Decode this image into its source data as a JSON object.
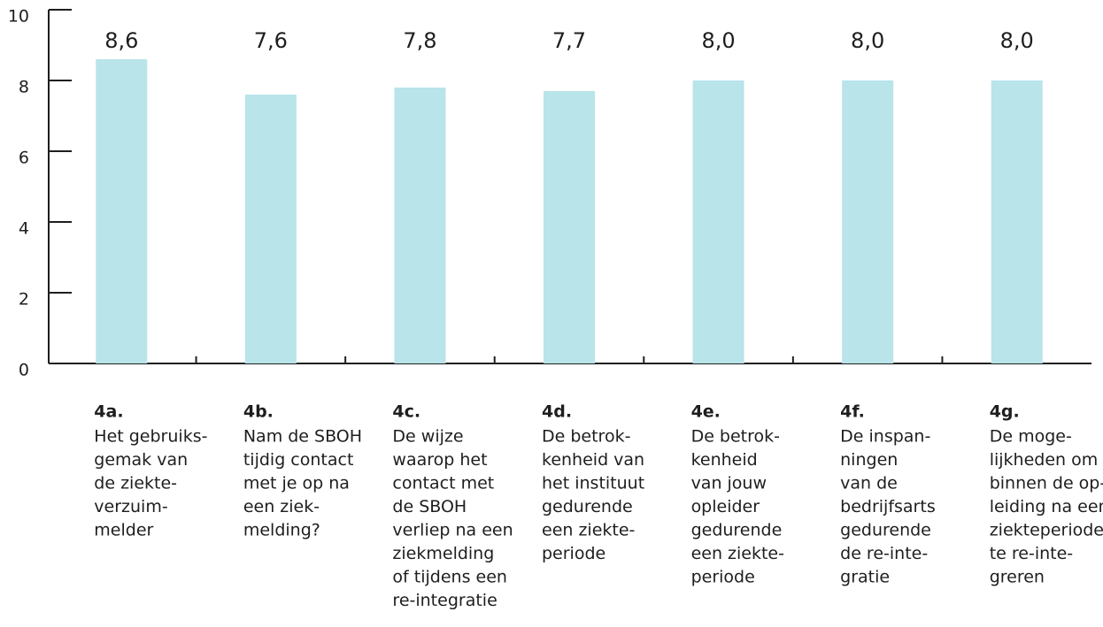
{
  "chart_data": {
    "type": "bar",
    "categories": [
      "4a.",
      "4b.",
      "4c.",
      "4d.",
      "4e.",
      "4f.",
      "4g."
    ],
    "descriptions": [
      [
        "Het gebruiks-",
        "gemak van",
        "de ziekte-",
        "verzuim-",
        "melder"
      ],
      [
        "Nam de SBOH",
        "tijdig contact",
        "met je op na",
        "een ziek-",
        "melding?"
      ],
      [
        "De wijze",
        "waarop het",
        "contact met",
        "de SBOH",
        "verliep na een",
        "ziekmelding",
        "of tijdens een",
        "re-integratie"
      ],
      [
        "De betrok-",
        "kenheid van",
        "het instituut",
        "gedurende",
        "een ziekte-",
        "periode"
      ],
      [
        "De betrok-",
        "kenheid",
        "van jouw",
        "opleider",
        "gedurende",
        "een ziekte-",
        "periode"
      ],
      [
        "De inspan-",
        "ningen",
        "van de",
        "bedrijfsarts",
        "gedurende",
        "de re-inte-",
        "gratie"
      ],
      [
        "De moge-",
        "lijkheden om",
        "binnen de op-",
        "leiding na een",
        "ziekteperiode",
        "te re-inte-",
        "greren"
      ]
    ],
    "values": [
      8.6,
      7.6,
      7.8,
      7.7,
      8.0,
      8.0,
      8.0
    ],
    "value_labels": [
      "8,6",
      "7,6",
      "7,8",
      "7,7",
      "8,0",
      "8,0",
      "8,0"
    ],
    "color": "#b8e4ea",
    "ylim": [
      0,
      10
    ],
    "yticks": [
      0,
      2,
      4,
      6,
      8,
      10
    ]
  }
}
